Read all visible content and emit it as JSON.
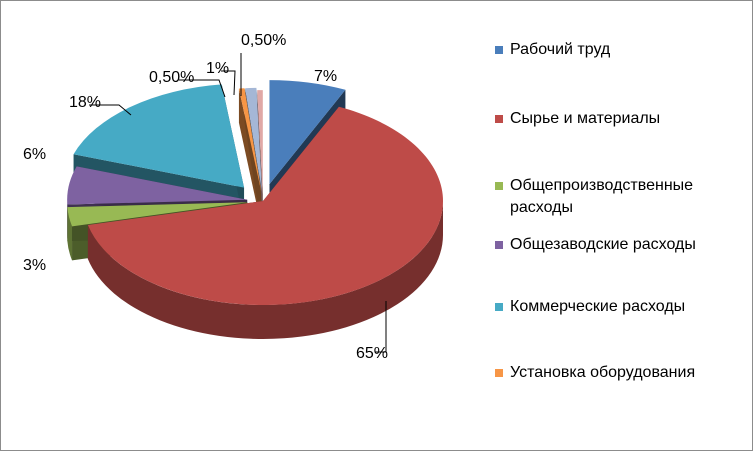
{
  "chart_data": {
    "type": "pie",
    "three_d": true,
    "exploded": true,
    "title": "",
    "categories": [
      "Рабочий труд",
      "Сырье и материалы",
      "Общепроизводственные расходы",
      "Общезаводские расходы",
      "Коммерческие расходы",
      "Установка оборудования",
      "",
      ""
    ],
    "values": [
      7,
      65,
      3,
      6,
      18,
      0.5,
      1,
      0.5
    ],
    "data_labels": [
      "7%",
      "65%",
      "3%",
      "6%",
      "18%",
      "0,50%",
      "1%",
      "0,50%"
    ],
    "colors": [
      "#4a7ebb",
      "#be4b48",
      "#98b954",
      "#7e62a1",
      "#46aac5",
      "#f79646",
      "#a5b7d6",
      "#e0a8a6"
    ],
    "legend": [
      {
        "label": "Рабочий труд",
        "color": "#4a7ebb"
      },
      {
        "label": "Сырье и материалы",
        "color": "#be4b48"
      },
      {
        "label": "Общепроизводственные расходы",
        "color": "#98b954"
      },
      {
        "label": "Общезаводские расходы",
        "color": "#7e62a1"
      },
      {
        "label": "Коммерческие расходы",
        "color": "#46aac5"
      },
      {
        "label": "Установка оборудования",
        "color": "#f79646"
      }
    ],
    "legend_position": "right"
  }
}
